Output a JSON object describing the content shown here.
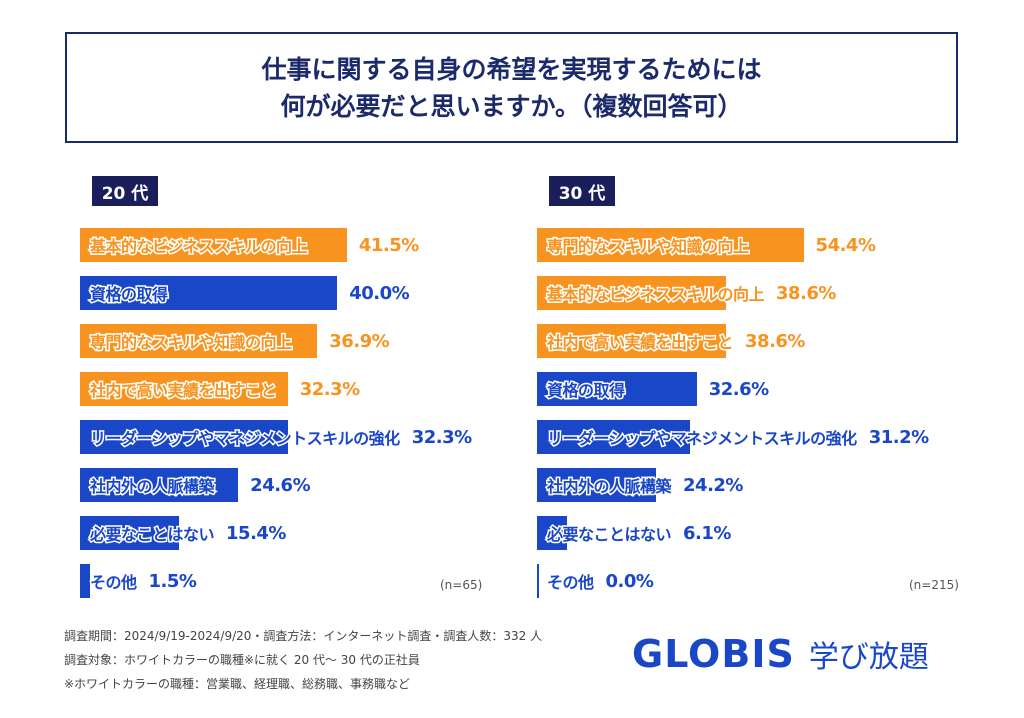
{
  "title": {
    "line1": "仕事に関する自身の希望を実現するためには",
    "line2": "何が必要だと思いますか。（複数回答可）"
  },
  "colors": {
    "orange": "#f7931e",
    "blue": "#1a47c8",
    "navy": "#1a1f5c"
  },
  "chart_data": [
    {
      "type": "bar",
      "orientation": "horizontal",
      "title": "20 代",
      "note": "(n=65)",
      "categories": [
        "基本的なビジネススキルの向上",
        "資格の取得",
        "専門的なスキルや知識の向上",
        "社内で高い実績を出すこと",
        "リーダーシップやマネジメントスキルの強化",
        "社内外の人脈構築",
        "必要なことはない",
        "その他"
      ],
      "values": [
        41.5,
        40.0,
        36.9,
        32.3,
        32.3,
        24.6,
        15.4,
        1.5
      ],
      "labels": [
        "41.5%",
        "40.0%",
        "36.9%",
        "32.3%",
        "32.3%",
        "24.6%",
        "15.4%",
        "1.5%"
      ],
      "bar_colors": [
        "orange",
        "blue",
        "orange",
        "orange",
        "blue",
        "blue",
        "blue",
        "blue"
      ]
    },
    {
      "type": "bar",
      "orientation": "horizontal",
      "title": "30 代",
      "note": "(n=215)",
      "categories": [
        "専門的なスキルや知識の向上",
        "基本的なビジネススキルの向上",
        "社内で高い実績を出すこと",
        "資格の取得",
        "リーダーシップやマネジメントスキルの強化",
        "社内外の人脈構築",
        "必要なことはない",
        "その他"
      ],
      "values": [
        54.4,
        38.6,
        38.6,
        32.6,
        31.2,
        24.2,
        6.1,
        0.0
      ],
      "labels": [
        "54.4%",
        "38.6%",
        "38.6%",
        "32.6%",
        "31.2%",
        "24.2%",
        "6.1%",
        "0.0%"
      ],
      "bar_colors": [
        "orange",
        "orange",
        "orange",
        "blue",
        "blue",
        "blue",
        "blue",
        "blue"
      ]
    }
  ],
  "footer": {
    "line1": "調査期間：2024/9/19-2024/9/20・調査方法：インターネット調査・調査人数：332 人",
    "line2": "調査対象：ホワイトカラーの職種※に就く 20 代～ 30 代の正社員",
    "line3": "※ホワイトカラーの職種：営業職、経理職、総務職、事務職など"
  },
  "logo": {
    "brand": "GLOBIS",
    "service": "学び放題"
  }
}
